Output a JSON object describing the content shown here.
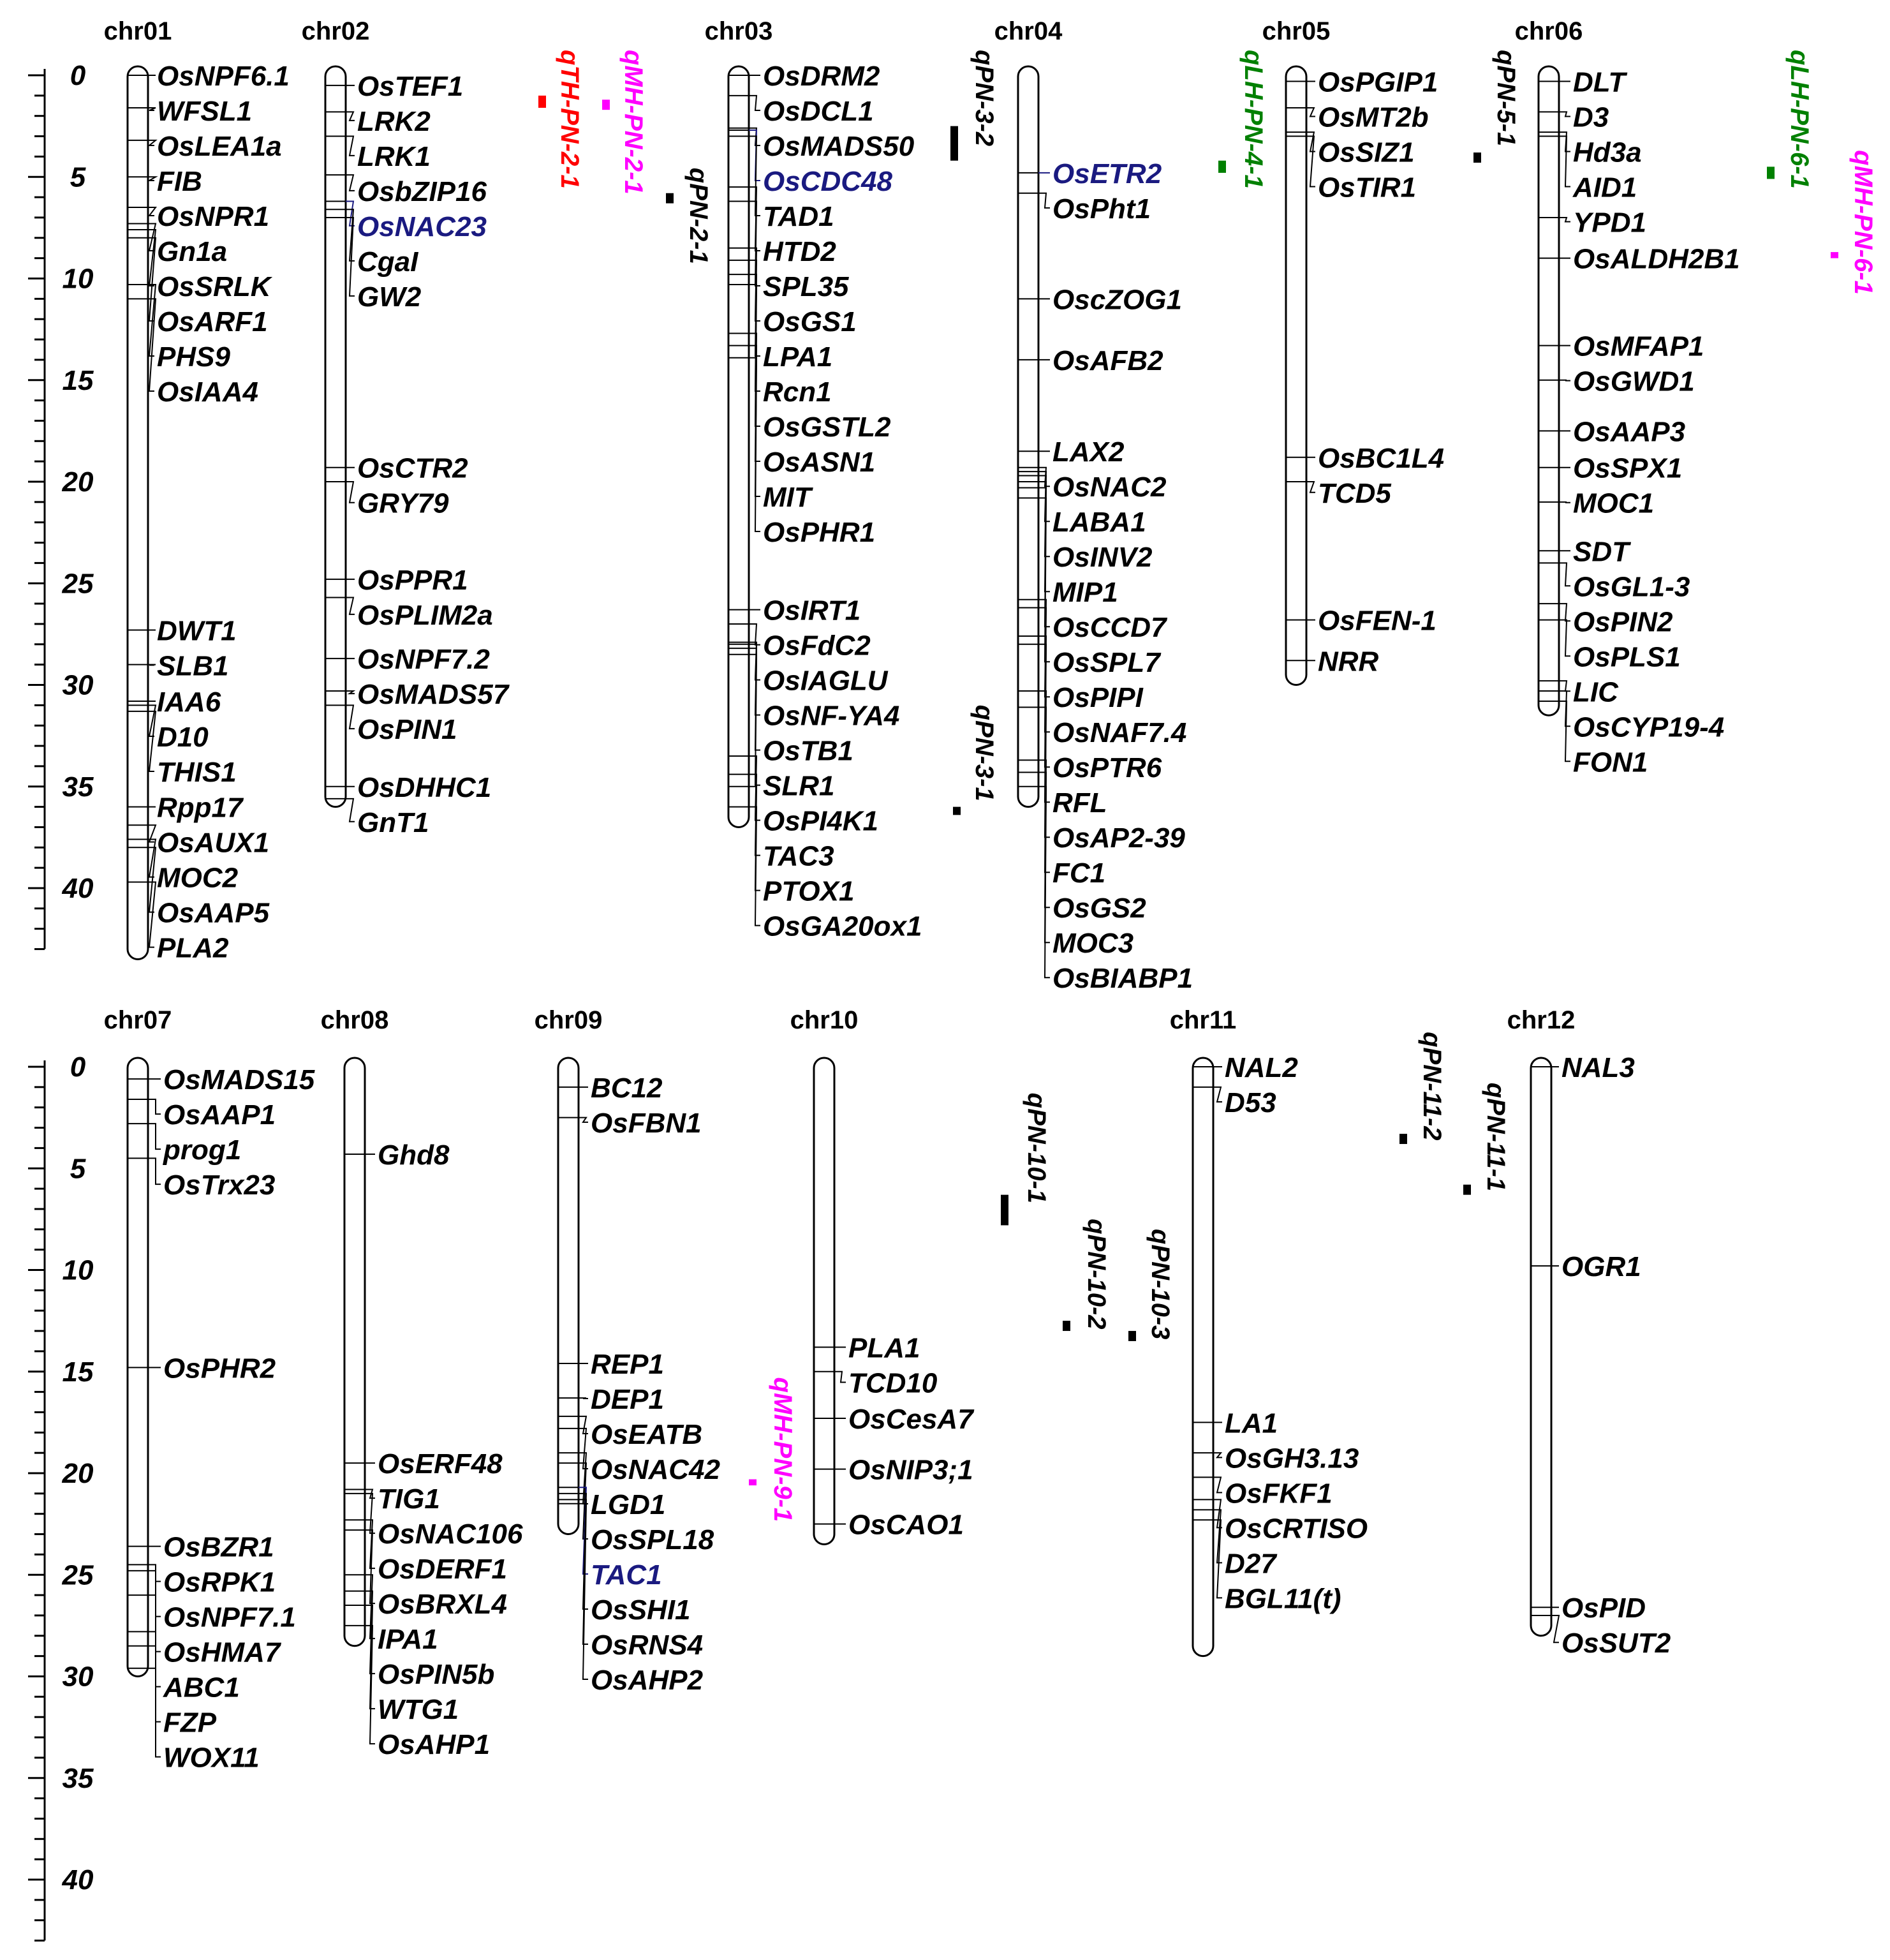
{
  "chart_data": {
    "type": "chromosome-map",
    "axis": {
      "min": 0,
      "max": 43,
      "major_ticks": [
        0,
        5,
        10,
        15,
        20,
        25,
        30,
        35,
        40
      ],
      "minor_step": 1
    },
    "colors": {
      "default": "#000000",
      "highlight": "#1a1a80",
      "red": "#ff0000",
      "magenta": "#ff00ff",
      "green": "#008000"
    },
    "chromosomes": [
      {
        "name": "chr01",
        "length": 43.5,
        "genes": [
          {
            "name": "OsNPF6.1",
            "pos": 0.0
          },
          {
            "name": "WFSL1",
            "pos": 1.6
          },
          {
            "name": "OsLEA1a",
            "pos": 3.2
          },
          {
            "name": "FIB",
            "pos": 5.0
          },
          {
            "name": "OsNPR1",
            "pos": 6.5
          },
          {
            "name": "Gn1a",
            "pos": 7.3
          },
          {
            "name": "OsSRLK",
            "pos": 7.6
          },
          {
            "name": "OsARF1",
            "pos": 8.0
          },
          {
            "name": "PHS9",
            "pos": 10.3
          },
          {
            "name": "OsIAA4",
            "pos": 11.0
          },
          {
            "name": "DWT1",
            "pos": 27.3
          },
          {
            "name": "SLB1",
            "pos": 29.0
          },
          {
            "name": "IAA6",
            "pos": 30.8
          },
          {
            "name": "D10",
            "pos": 31.0
          },
          {
            "name": "THIS1",
            "pos": 31.3
          },
          {
            "name": "Rpp17",
            "pos": 36.0
          },
          {
            "name": "OsAUX1",
            "pos": 36.9
          },
          {
            "name": "MOC2",
            "pos": 37.6
          },
          {
            "name": "OsAAP5",
            "pos": 38.0
          },
          {
            "name": "PLA2",
            "pos": 39.7
          }
        ]
      },
      {
        "name": "chr02",
        "length": 36.0,
        "genes": [
          {
            "name": "OsTEF1",
            "pos": 0.5
          },
          {
            "name": "LRK2",
            "pos": 1.8
          },
          {
            "name": "LRK1",
            "pos": 3.0
          },
          {
            "name": "OsbZIP16",
            "pos": 4.9
          },
          {
            "name": "OsNAC23",
            "pos": 6.2,
            "hl": "#1a1a80"
          },
          {
            "name": "CgaI",
            "pos": 6.6
          },
          {
            "name": "GW2",
            "pos": 7.0
          },
          {
            "name": "OsCTR2",
            "pos": 19.3
          },
          {
            "name": "GRY79",
            "pos": 20.0
          },
          {
            "name": "OsPPR1",
            "pos": 24.8
          },
          {
            "name": "OsPLIM2a",
            "pos": 25.7
          },
          {
            "name": "OsNPF7.2",
            "pos": 28.7
          },
          {
            "name": "OsMADS57",
            "pos": 30.3
          },
          {
            "name": "OsPIN1",
            "pos": 31.0
          },
          {
            "name": "OsDHHC1",
            "pos": 35.0
          },
          {
            "name": "GnT1",
            "pos": 35.6
          }
        ]
      },
      {
        "name": "chr03",
        "length": 37.0,
        "genes": [
          {
            "name": "OsDRM2",
            "pos": 0.0
          },
          {
            "name": "OsDCL1",
            "pos": 1.0
          },
          {
            "name": "OsMADS50",
            "pos": 2.6
          },
          {
            "name": "TAD1",
            "pos": 3.0
          },
          {
            "name": "OsCDC48",
            "pos": 2.7,
            "hl": "#1a1a80"
          },
          {
            "name": "HTD2",
            "pos": 5.5
          },
          {
            "name": "SPL35",
            "pos": 6.2
          },
          {
            "name": "OsGS1",
            "pos": 8.5
          },
          {
            "name": "LPA1",
            "pos": 9.1
          },
          {
            "name": "Rcn1",
            "pos": 9.8
          },
          {
            "name": "OsGSTL2",
            "pos": 10.3
          },
          {
            "name": "OsASN1",
            "pos": 12.7
          },
          {
            "name": "MIT",
            "pos": 13.3
          },
          {
            "name": "OsPHR1",
            "pos": 13.9
          },
          {
            "name": "OsIRT1",
            "pos": 26.3
          },
          {
            "name": "OsFdC2",
            "pos": 27.0
          },
          {
            "name": "OsIAGLU",
            "pos": 27.9
          },
          {
            "name": "OsNF-YA4",
            "pos": 28.0
          },
          {
            "name": "OsTB1",
            "pos": 28.2
          },
          {
            "name": "SLR1",
            "pos": 28.5
          },
          {
            "name": "OsPI4K1",
            "pos": 33.5
          },
          {
            "name": "TAC3",
            "pos": 34.4
          },
          {
            "name": "PTOX1",
            "pos": 35.0
          },
          {
            "name": "OsGA20ox1",
            "pos": 36.0
          }
        ]
      },
      {
        "name": "chr04",
        "length": 36.0,
        "genes": [
          {
            "name": "OsETR2",
            "pos": 4.8,
            "hl": "#1a1a80"
          },
          {
            "name": "OsPht1",
            "pos": 5.8
          },
          {
            "name": "OscZOG1",
            "pos": 11.0
          },
          {
            "name": "OsAFB2",
            "pos": 14.0
          },
          {
            "name": "LAX2",
            "pos": 18.5
          },
          {
            "name": "OsNAC2",
            "pos": 19.3
          },
          {
            "name": "LABA1",
            "pos": 19.5
          },
          {
            "name": "OsINV2",
            "pos": 19.7
          },
          {
            "name": "MIP1",
            "pos": 20.0
          },
          {
            "name": "OsCCD7",
            "pos": 20.3
          },
          {
            "name": "OsSPL7",
            "pos": 20.8
          },
          {
            "name": "OsPIPI",
            "pos": 25.8
          },
          {
            "name": "OsNAF7.4",
            "pos": 26.2
          },
          {
            "name": "OsPTR6",
            "pos": 27.6
          },
          {
            "name": "RFL",
            "pos": 28.0
          },
          {
            "name": "OsAP2-39",
            "pos": 30.3
          },
          {
            "name": "FC1",
            "pos": 31.1
          },
          {
            "name": "OsGS2",
            "pos": 33.7
          },
          {
            "name": "MOC3",
            "pos": 34.3
          },
          {
            "name": "OsBIABP1",
            "pos": 35.0
          }
        ]
      },
      {
        "name": "chr05",
        "length": 30.0,
        "genes": [
          {
            "name": "OsPGIP1",
            "pos": 0.3
          },
          {
            "name": "OsMT2b",
            "pos": 1.6
          },
          {
            "name": "OsSIZ1",
            "pos": 2.8
          },
          {
            "name": "OsTIR1",
            "pos": 3.0
          },
          {
            "name": "OsBC1L4",
            "pos": 18.8
          },
          {
            "name": "TCD5",
            "pos": 20.0
          },
          {
            "name": "OsFEN-1",
            "pos": 26.8
          },
          {
            "name": "NRR",
            "pos": 28.8
          }
        ]
      },
      {
        "name": "chr06",
        "length": 31.5,
        "genes": [
          {
            "name": "DLT",
            "pos": 0.3
          },
          {
            "name": "D3",
            "pos": 1.8
          },
          {
            "name": "Hd3a",
            "pos": 2.8
          },
          {
            "name": "AID1",
            "pos": 3.0
          },
          {
            "name": "YPD1",
            "pos": 7.0
          },
          {
            "name": "OsALDH2B1",
            "pos": 9.0
          },
          {
            "name": "OsMFAP1",
            "pos": 13.3
          },
          {
            "name": "OsGWD1",
            "pos": 15.0
          },
          {
            "name": "OsAAP3",
            "pos": 17.5
          },
          {
            "name": "OsSPX1",
            "pos": 19.3
          },
          {
            "name": "MOC1",
            "pos": 21.0
          },
          {
            "name": "SDT",
            "pos": 23.4
          },
          {
            "name": "OsGL1-3",
            "pos": 24.0
          },
          {
            "name": "OsPIN2",
            "pos": 26.0
          },
          {
            "name": "OsPLS1",
            "pos": 26.8
          },
          {
            "name": "LIC",
            "pos": 29.8
          },
          {
            "name": "OsCYP19-4",
            "pos": 30.3
          },
          {
            "name": "FON1",
            "pos": 30.8
          }
        ]
      },
      {
        "name": "chr07",
        "length": 30.0,
        "genes": [
          {
            "name": "OsMADS15",
            "pos": 0.6
          },
          {
            "name": "OsAAP1",
            "pos": 1.6
          },
          {
            "name": "prog1",
            "pos": 2.8
          },
          {
            "name": "OsTrx23",
            "pos": 4.5
          },
          {
            "name": "OsPHR2",
            "pos": 14.8
          },
          {
            "name": "OsBZR1",
            "pos": 23.6
          },
          {
            "name": "OsRPK1",
            "pos": 24.5
          },
          {
            "name": "OsNPF7.1",
            "pos": 24.8
          },
          {
            "name": "OsHMA7",
            "pos": 26.0
          },
          {
            "name": "ABC1",
            "pos": 27.8
          },
          {
            "name": "FZP",
            "pos": 28.5
          },
          {
            "name": "WOX11",
            "pos": 29.6
          }
        ]
      },
      {
        "name": "chr08",
        "length": 28.5,
        "genes": [
          {
            "name": "Ghd8",
            "pos": 4.3
          },
          {
            "name": "OsERF48",
            "pos": 19.5
          },
          {
            "name": "TIG1",
            "pos": 20.8
          },
          {
            "name": "OsNAC106",
            "pos": 21.0
          },
          {
            "name": "OsDERF1",
            "pos": 22.3
          },
          {
            "name": "OsBRXL4",
            "pos": 22.8
          },
          {
            "name": "IPA1",
            "pos": 25.0
          },
          {
            "name": "OsPIN5b",
            "pos": 25.8
          },
          {
            "name": "WTG1",
            "pos": 26.5
          },
          {
            "name": "OsAHP1",
            "pos": 27.5
          }
        ]
      },
      {
        "name": "chr09",
        "length": 23.0,
        "genes": [
          {
            "name": "BC12",
            "pos": 1.0
          },
          {
            "name": "OsFBN1",
            "pos": 2.5
          },
          {
            "name": "REP1",
            "pos": 14.6
          },
          {
            "name": "DEP1",
            "pos": 16.3
          },
          {
            "name": "OsEATB",
            "pos": 17.2
          },
          {
            "name": "OsNAC42",
            "pos": 17.8
          },
          {
            "name": "LGD1",
            "pos": 19.0
          },
          {
            "name": "OsSPL18",
            "pos": 19.5
          },
          {
            "name": "TAC1",
            "pos": 20.7,
            "hl": "#1a1a80"
          },
          {
            "name": "OsSHI1",
            "pos": 21.0
          },
          {
            "name": "OsRNS4",
            "pos": 21.3
          },
          {
            "name": "OsAHP2",
            "pos": 21.5
          }
        ]
      },
      {
        "name": "chr10",
        "length": 23.5,
        "genes": [
          {
            "name": "PLA1",
            "pos": 13.8
          },
          {
            "name": "TCD10",
            "pos": 15.0
          },
          {
            "name": "OsCesA7",
            "pos": 17.3
          },
          {
            "name": "OsNIP3;1",
            "pos": 19.8
          },
          {
            "name": "OsCAO1",
            "pos": 22.5
          }
        ]
      },
      {
        "name": "chr11",
        "length": 29.0,
        "genes": [
          {
            "name": "NAL2",
            "pos": 0.0
          },
          {
            "name": "D53",
            "pos": 1.0
          },
          {
            "name": "LA1",
            "pos": 17.5
          },
          {
            "name": "OsGH3.13",
            "pos": 19.0
          },
          {
            "name": "OsFKF1",
            "pos": 20.2
          },
          {
            "name": "OsCRTISO",
            "pos": 21.3
          },
          {
            "name": "D27",
            "pos": 21.8
          },
          {
            "name": "BGL11(t)",
            "pos": 22.3
          }
        ]
      },
      {
        "name": "chr12",
        "length": 28.0,
        "genes": [
          {
            "name": "NAL3",
            "pos": 0.0
          },
          {
            "name": "OGR1",
            "pos": 9.8
          },
          {
            "name": "OsPID",
            "pos": 26.6
          },
          {
            "name": "OsSUT2",
            "pos": 27.0
          }
        ]
      }
    ],
    "qtls": [
      {
        "name": "qTH-PN-2-1",
        "color": "#ff0000",
        "start": 1.0,
        "end": 1.6
      },
      {
        "name": "qMH-PN-2-1",
        "color": "#ff00ff",
        "start": 1.2,
        "end": 1.7
      },
      {
        "name": "qPN-2-1",
        "color": "#000000",
        "start": 5.8,
        "end": 6.3
      },
      {
        "name": "qPN-3-2",
        "color": "#000000",
        "start": 2.5,
        "end": 4.2
      },
      {
        "name": "qPN-3-1",
        "color": "#000000",
        "start": 36.0,
        "end": 36.4
      },
      {
        "name": "qLH-PN-4-1",
        "color": "#008000",
        "start": 4.2,
        "end": 4.8
      },
      {
        "name": "qPN-5-1",
        "color": "#000000",
        "start": 3.8,
        "end": 4.3
      },
      {
        "name": "qLH-PN-6-1",
        "color": "#008000",
        "start": 4.5,
        "end": 5.1
      },
      {
        "name": "qMH-PN-6-1",
        "color": "#ff00ff",
        "start": 8.7,
        "end": 9.0
      },
      {
        "name": "qPN-10-1",
        "color": "#000000",
        "start": 6.3,
        "end": 7.8
      },
      {
        "name": "qPN-10-2",
        "color": "#000000",
        "start": 12.5,
        "end": 13.0
      },
      {
        "name": "qPN-10-3",
        "color": "#000000",
        "start": 13.0,
        "end": 13.5
      },
      {
        "name": "qMH-PN-9-1",
        "color": "#ff00ff",
        "start": 20.3,
        "end": 20.6
      },
      {
        "name": "qPN-11-2",
        "color": "#000000",
        "start": 3.3,
        "end": 3.8
      },
      {
        "name": "qPN-11-1",
        "color": "#000000",
        "start": 5.8,
        "end": 6.3
      }
    ]
  }
}
